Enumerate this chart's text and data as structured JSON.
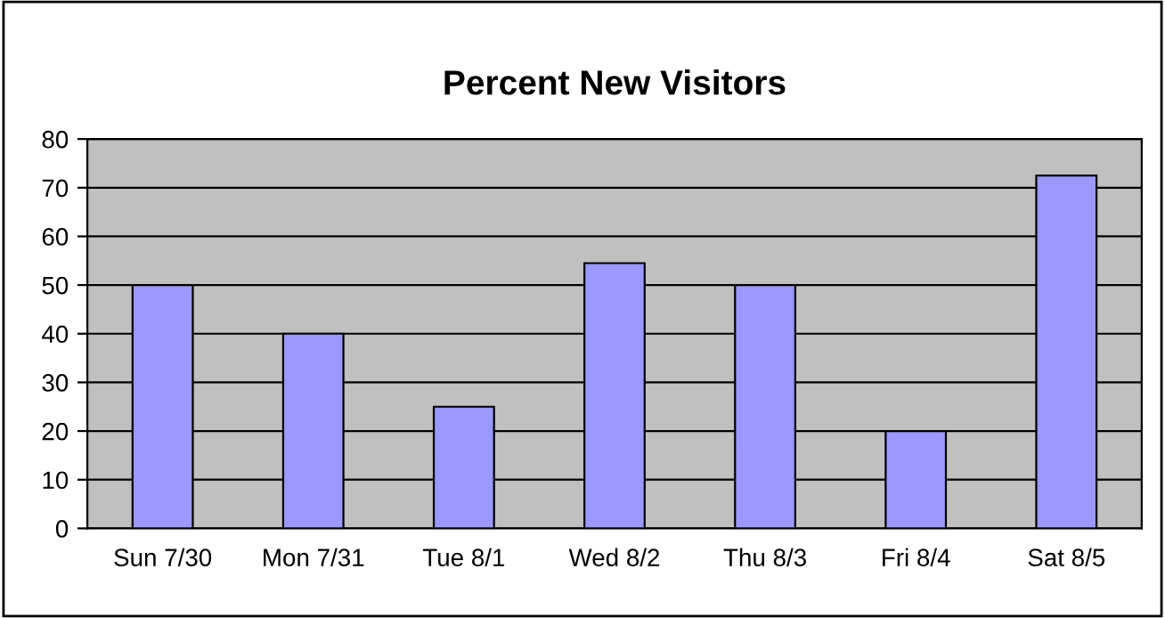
{
  "chart_data": {
    "type": "bar",
    "title": "Percent New Visitors",
    "categories": [
      "Sun 7/30",
      "Mon 7/31",
      "Tue 8/1",
      "Wed 8/2",
      "Thu 8/3",
      "Fri 8/4",
      "Sat 8/5"
    ],
    "values": [
      50,
      40,
      25,
      54.5,
      50,
      20,
      72.5
    ],
    "color": "#9999ff",
    "ylim": [
      0,
      80
    ],
    "yticks": [
      0,
      10,
      20,
      30,
      40,
      50,
      60,
      70,
      80
    ],
    "grid": "y",
    "legend": false
  }
}
